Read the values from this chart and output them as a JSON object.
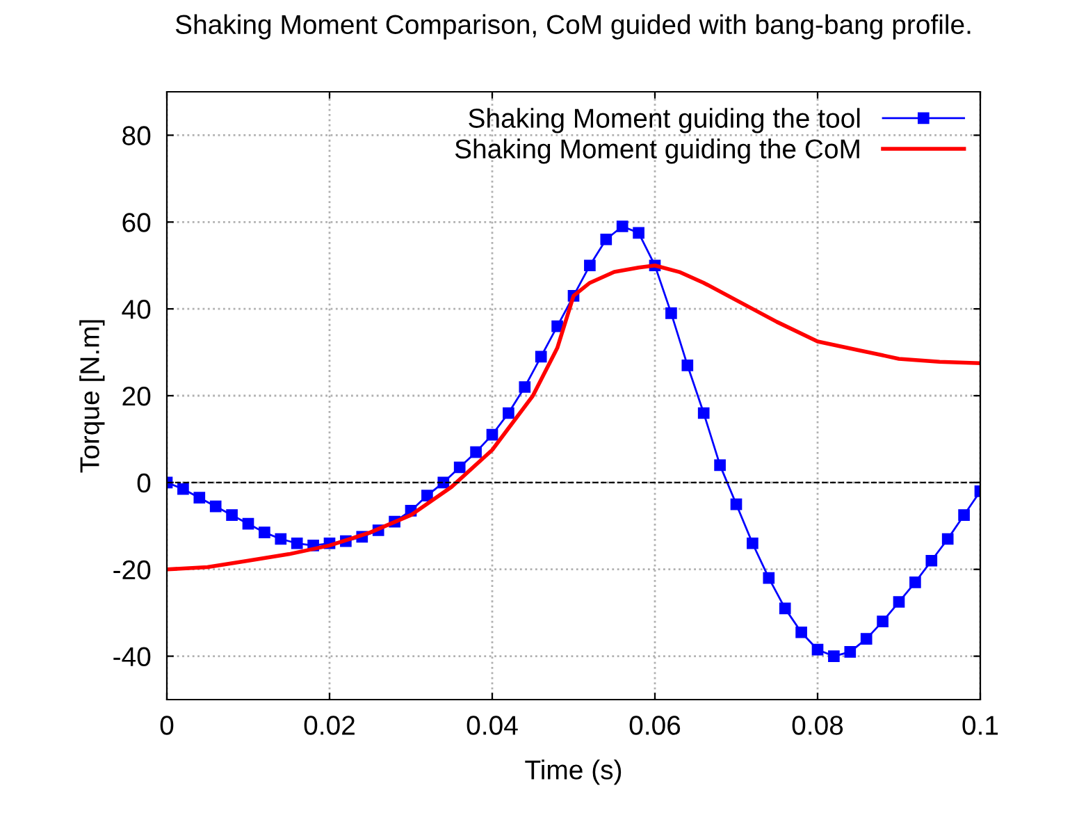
{
  "chart_data": {
    "type": "line",
    "title": "Shaking Moment Comparison, CoM guided with bang-bang profile.",
    "xlabel": "Time (s)",
    "ylabel": "Torque [N.m]",
    "xlim": [
      0,
      0.1
    ],
    "xticks": [
      0,
      0.02,
      0.04,
      0.06,
      0.08,
      0.1
    ],
    "ylim": [
      -50,
      90
    ],
    "yticks": [
      -40,
      -20,
      0,
      20,
      40,
      60,
      80
    ],
    "grid": true,
    "legend": "top right",
    "ref_lines": [
      {
        "axis": "y",
        "value": 0,
        "color": "#000000",
        "line_style": "dashed"
      }
    ],
    "series": [
      {
        "name": "Shaking Moment guiding the tool",
        "color": "#0000ff",
        "marker": "square",
        "x": [
          0,
          0.002,
          0.004,
          0.006,
          0.008,
          0.01,
          0.012,
          0.014,
          0.016,
          0.018,
          0.02,
          0.022,
          0.024,
          0.026,
          0.028,
          0.03,
          0.032,
          0.034,
          0.036,
          0.038,
          0.04,
          0.042,
          0.044,
          0.046,
          0.048,
          0.05,
          0.052,
          0.054,
          0.056,
          0.058,
          0.06,
          0.062,
          0.064,
          0.066,
          0.068,
          0.07,
          0.072,
          0.074,
          0.076,
          0.078,
          0.08,
          0.082,
          0.084,
          0.086,
          0.088,
          0.09,
          0.092,
          0.094,
          0.096,
          0.098,
          0.1
        ],
        "values": [
          0,
          -1.5,
          -3.5,
          -5.5,
          -7.5,
          -9.5,
          -11.5,
          -13,
          -14,
          -14.5,
          -14,
          -13.5,
          -12.5,
          -11,
          -9,
          -6.5,
          -3,
          0,
          3.5,
          7,
          11,
          16,
          22,
          29,
          36,
          43,
          50,
          56,
          59,
          57.5,
          50,
          39,
          27,
          16,
          4,
          -5,
          -14,
          -22,
          -29,
          -34.5,
          -38.5,
          -40,
          -39,
          -36,
          -32,
          -27.5,
          -23,
          -18,
          -13,
          -7.5,
          -2
        ]
      },
      {
        "name": "Shaking Moment guiding the CoM",
        "color": "#ff0000",
        "marker": "none",
        "x": [
          0,
          0.005,
          0.01,
          0.015,
          0.02,
          0.025,
          0.03,
          0.035,
          0.04,
          0.045,
          0.048,
          0.05,
          0.052,
          0.055,
          0.058,
          0.06,
          0.063,
          0.066,
          0.07,
          0.075,
          0.08,
          0.085,
          0.09,
          0.095,
          0.1
        ],
        "values": [
          -20,
          -19.5,
          -18,
          -16.5,
          -14.5,
          -11.5,
          -7.5,
          -1,
          7.5,
          20,
          31,
          43,
          46,
          48.5,
          49.5,
          50,
          48.5,
          46,
          42,
          37,
          32.5,
          30.5,
          28.5,
          27.8,
          27.5
        ]
      }
    ]
  }
}
